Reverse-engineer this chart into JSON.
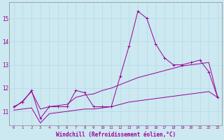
{
  "xlabel": "Windchill (Refroidissement éolien,°C)",
  "x": [
    0,
    1,
    2,
    3,
    4,
    5,
    6,
    7,
    8,
    9,
    10,
    11,
    12,
    13,
    14,
    15,
    16,
    17,
    18,
    19,
    20,
    21,
    22,
    23
  ],
  "line1": [
    11.2,
    11.4,
    11.9,
    10.7,
    11.2,
    11.2,
    11.2,
    11.9,
    11.8,
    11.2,
    11.2,
    11.2,
    12.5,
    13.8,
    15.3,
    15.0,
    13.9,
    13.3,
    13.0,
    13.0,
    13.1,
    13.2,
    12.7,
    11.6
  ],
  "line2": [
    11.15,
    11.45,
    11.85,
    11.1,
    11.2,
    11.25,
    11.3,
    11.6,
    11.7,
    11.75,
    11.9,
    12.0,
    12.15,
    12.3,
    12.45,
    12.55,
    12.65,
    12.75,
    12.85,
    12.95,
    13.0,
    13.05,
    13.1,
    11.6
  ],
  "line3": [
    11.05,
    11.1,
    11.15,
    10.5,
    10.9,
    10.95,
    11.0,
    11.05,
    11.1,
    11.1,
    11.15,
    11.2,
    11.3,
    11.4,
    11.45,
    11.5,
    11.55,
    11.6,
    11.65,
    11.7,
    11.75,
    11.8,
    11.85,
    11.6
  ],
  "line_color": "#990099",
  "bg_color": "#cce8f0",
  "grid_color": "#aadddd",
  "ylim": [
    10.4,
    15.7
  ],
  "xlim": [
    -0.5,
    23.5
  ],
  "yticks": [
    11,
    12,
    13,
    14,
    15
  ]
}
